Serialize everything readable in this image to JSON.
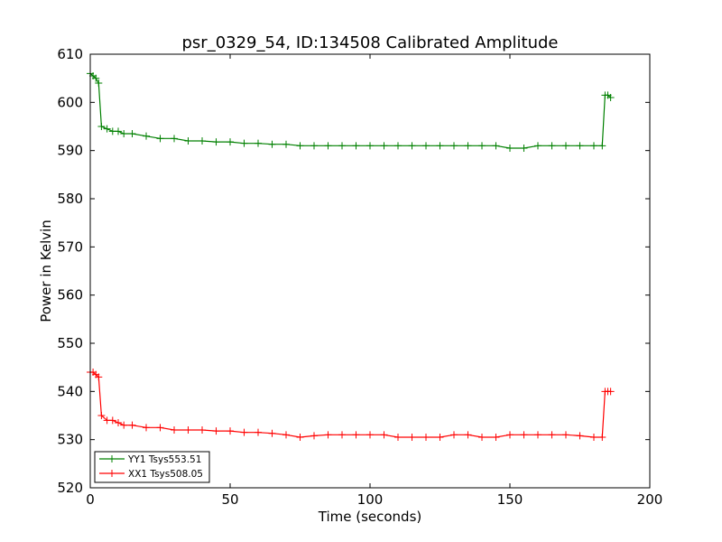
{
  "chart_data": {
    "type": "line",
    "title": "psr_0329_54, ID:134508 Calibrated Amplitude",
    "xlabel": "Time (seconds)",
    "ylabel": "Power in Kelvin",
    "xlim": [
      0,
      200
    ],
    "ylim": [
      520,
      610
    ],
    "xticks": [
      0,
      50,
      100,
      150,
      200
    ],
    "yticks": [
      520,
      530,
      540,
      550,
      560,
      570,
      580,
      590,
      600,
      610
    ],
    "grid": false,
    "legend_position": "lower-left",
    "series": [
      {
        "name": "YY1 Tsys553.51",
        "color": "#008000",
        "marker": "+",
        "x": [
          0,
          1,
          2,
          3,
          4,
          6,
          8,
          10,
          12,
          15,
          20,
          25,
          30,
          35,
          40,
          45,
          50,
          55,
          60,
          65,
          70,
          75,
          80,
          85,
          90,
          95,
          100,
          105,
          110,
          115,
          120,
          125,
          130,
          135,
          140,
          145,
          150,
          155,
          160,
          165,
          170,
          175,
          180,
          183,
          184,
          185,
          186
        ],
        "y": [
          606,
          605.5,
          605,
          604,
          595,
          594.5,
          594,
          594,
          593.5,
          593.5,
          593,
          592.5,
          592.5,
          592,
          592,
          591.8,
          591.8,
          591.5,
          591.5,
          591.3,
          591.3,
          591,
          591,
          591,
          591,
          591,
          591,
          591,
          591,
          591,
          591,
          591,
          591,
          591,
          591,
          591,
          590.5,
          590.5,
          591,
          591,
          591,
          591,
          591,
          591,
          601.5,
          601.5,
          601
        ]
      },
      {
        "name": "XX1 Tsys508.05",
        "color": "#ff0000",
        "marker": "+",
        "x": [
          0,
          1,
          2,
          3,
          4,
          6,
          8,
          10,
          12,
          15,
          20,
          25,
          30,
          35,
          40,
          45,
          50,
          55,
          60,
          65,
          70,
          75,
          80,
          85,
          90,
          95,
          100,
          105,
          110,
          115,
          120,
          125,
          130,
          135,
          140,
          145,
          150,
          155,
          160,
          165,
          170,
          175,
          180,
          183,
          184,
          185,
          186
        ],
        "y": [
          544,
          544,
          543.5,
          543,
          535,
          534,
          534,
          533.5,
          533,
          533,
          532.5,
          532.5,
          532,
          532,
          532,
          531.8,
          531.8,
          531.5,
          531.5,
          531.3,
          531,
          530.5,
          530.8,
          531,
          531,
          531,
          531,
          531,
          530.5,
          530.5,
          530.5,
          530.5,
          531,
          531,
          530.5,
          530.5,
          531,
          531,
          531,
          531,
          531,
          530.8,
          530.5,
          530.5,
          540,
          540,
          540
        ]
      }
    ]
  }
}
